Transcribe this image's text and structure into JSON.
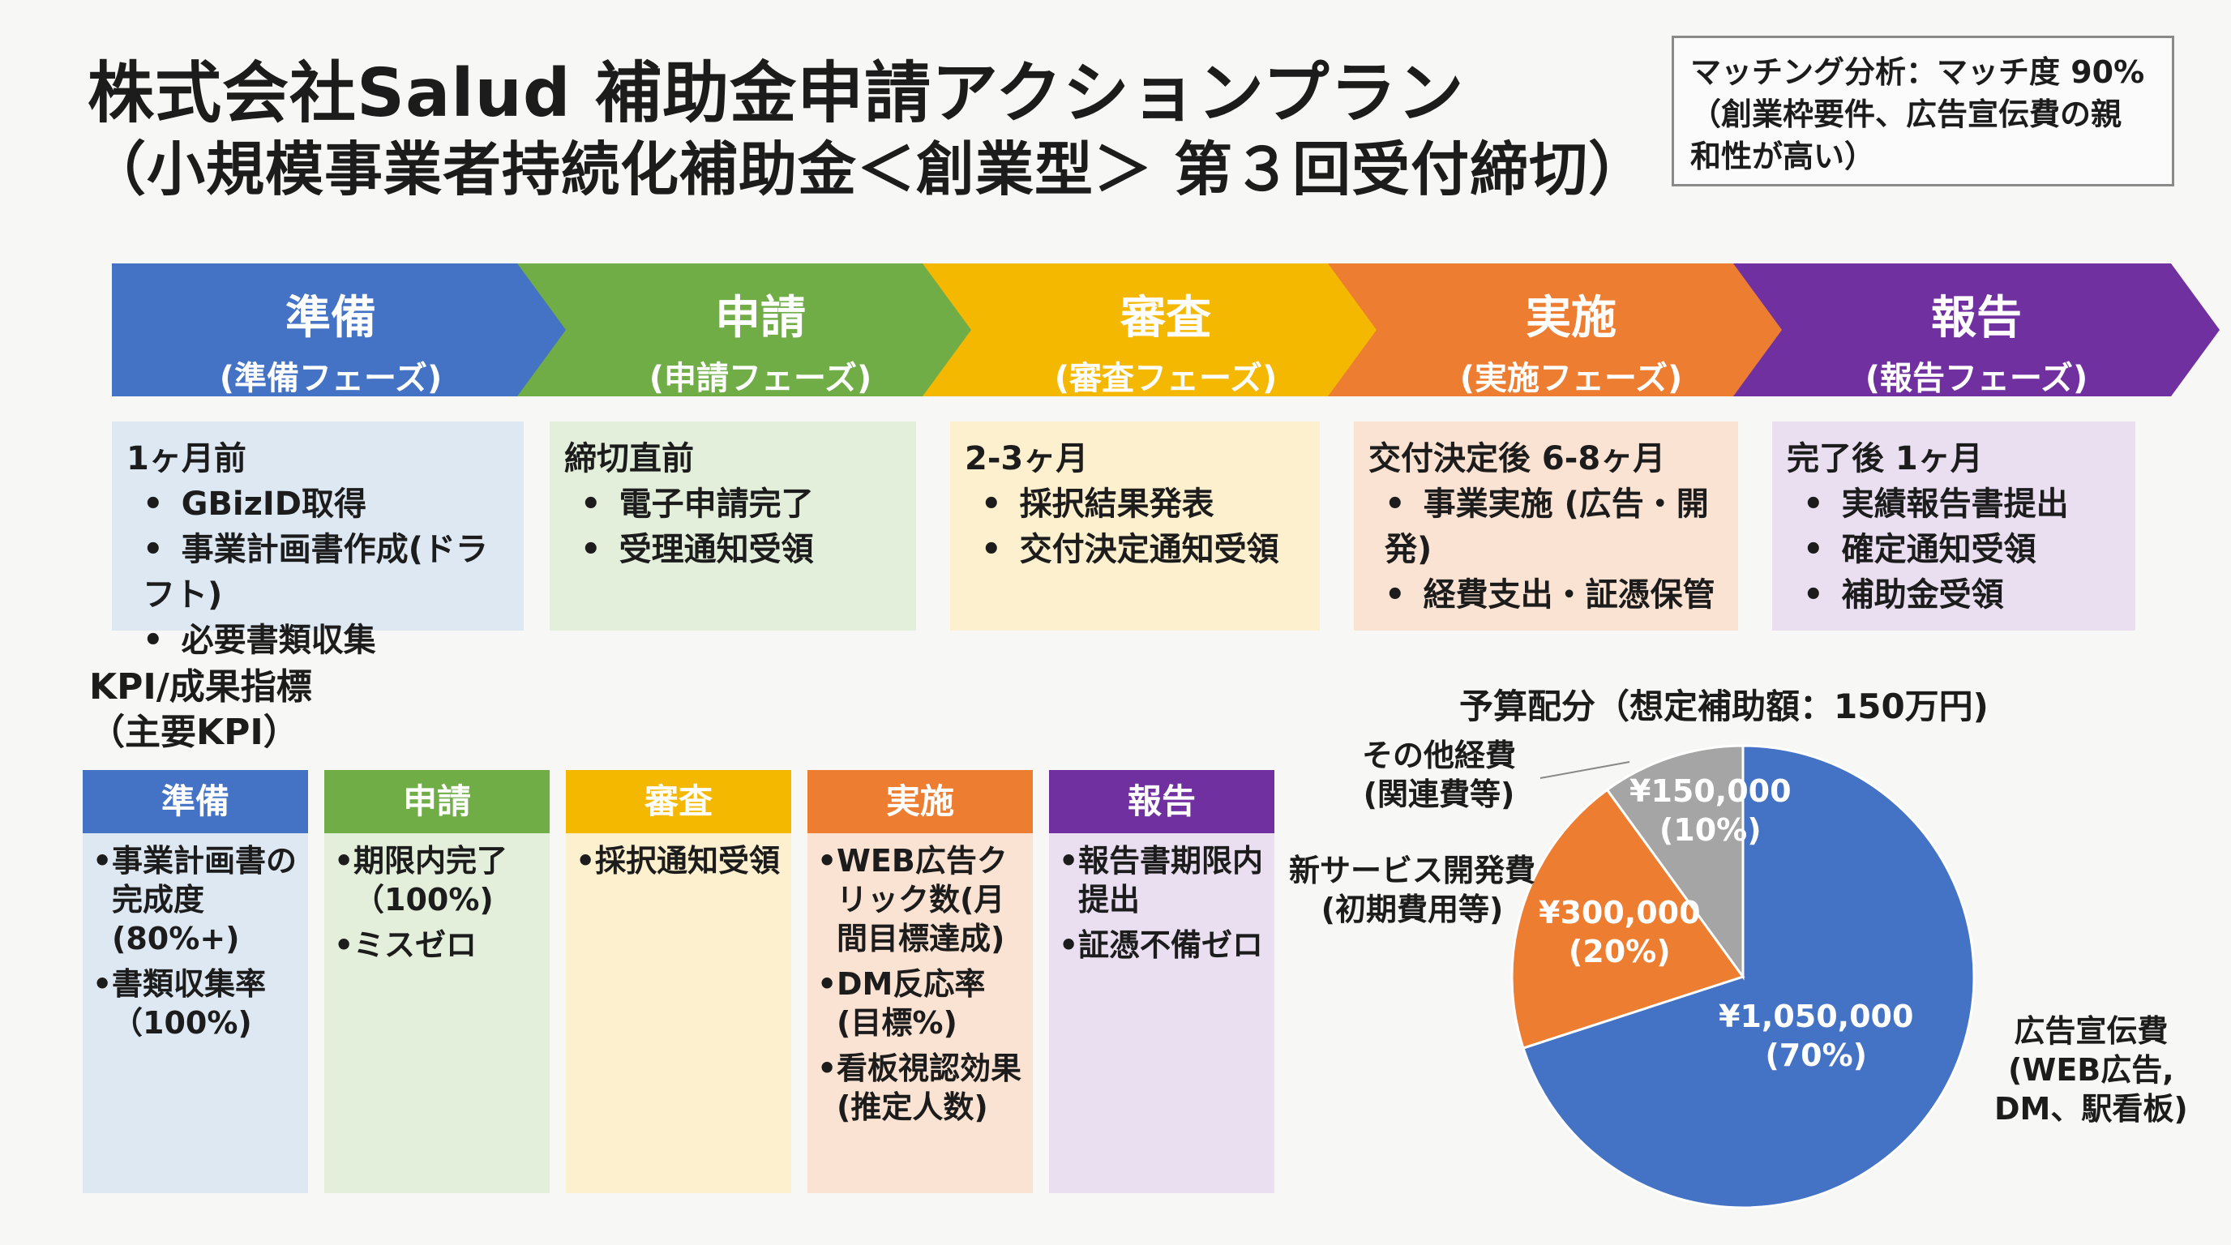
{
  "title": {
    "line1": "株式会社Salud 補助金申請アクションプラン",
    "line2": "（小規模事業者持続化補助金＜創業型＞ 第３回受付締切）"
  },
  "matching": {
    "line1": "マッチング分析：マッチ度 90%",
    "line2": "（創業枠要件、広告宣伝費の親",
    "line3": "和性が高い）"
  },
  "phases": [
    {
      "title": "準備",
      "subtitle": "(準備フェーズ)",
      "color": "#4472c4",
      "bg": "#dde8f2",
      "timing": "1ヶ月前",
      "items": [
        "GBizID取得",
        "事業計画書作成(ドラフト)",
        "必要書類収集"
      ]
    },
    {
      "title": "申請",
      "subtitle": "(申請フェーズ)",
      "color": "#70ad47",
      "bg": "#e3efdb",
      "timing": "締切直前",
      "items": [
        "電子申請完了",
        "受理通知受領"
      ]
    },
    {
      "title": "審査",
      "subtitle": "(審査フェーズ)",
      "color": "#f5b800",
      "bg": "#fdf0cf",
      "timing": "2-3ヶ月",
      "items": [
        "採択結果発表",
        "交付決定通知受領"
      ]
    },
    {
      "title": "実施",
      "subtitle": "(実施フェーズ)",
      "color": "#ed7d31",
      "bg": "#fbe3d3",
      "timing": "交付決定後 6-8ヶ月",
      "items": [
        "事業実施 (広告・開発)",
        "経費支出・証憑保管"
      ]
    },
    {
      "title": "報告",
      "subtitle": "(報告フェーズ)",
      "color": "#7030a0",
      "bg": "#eadff0",
      "timing": "完了後 1ヶ月",
      "items": [
        "実績報告書提出",
        "確定通知受領",
        "補助金受領"
      ]
    }
  ],
  "kpi": {
    "heading1": "KPI/成果指標",
    "heading2": "（主要KPI）",
    "columns": [
      {
        "title": "準備",
        "items": [
          "事業計画書の完成度(80%+)",
          "書類収集率（100%)"
        ]
      },
      {
        "title": "申請",
        "items": [
          "期限内完了（100%)",
          "ミスゼロ"
        ]
      },
      {
        "title": "審査",
        "items": [
          "採択通知受領"
        ]
      },
      {
        "title": "実施",
        "items": [
          "WEB広告クリック数(月間目標達成)",
          "DM反応率(目標%)",
          "看板視認効果(推定人数)"
        ]
      },
      {
        "title": "報告",
        "items": [
          "報告書期限内提出",
          "証憑不備ゼロ"
        ]
      }
    ]
  },
  "chart_data": {
    "type": "pie",
    "title": "予算配分（想定補助額：150万円)",
    "slices": [
      {
        "label_line1": "広告宣伝費",
        "label_line2": "(WEB広告,",
        "label_line3": "DM、駅看板)",
        "value": 1050000,
        "amount": "¥1,050,000",
        "percent": "(70%)",
        "color": "#4472c4"
      },
      {
        "label_line1": "新サービス開発費",
        "label_line2": "(初期費用等)",
        "value": 300000,
        "amount": "¥300,000",
        "percent": "(20%)",
        "color": "#ed7d31"
      },
      {
        "label_line1": "その他経費",
        "label_line2": "(関連費等)",
        "value": 150000,
        "amount": "¥150,000",
        "percent": "(10%)",
        "color": "#a5a5a5"
      }
    ]
  }
}
